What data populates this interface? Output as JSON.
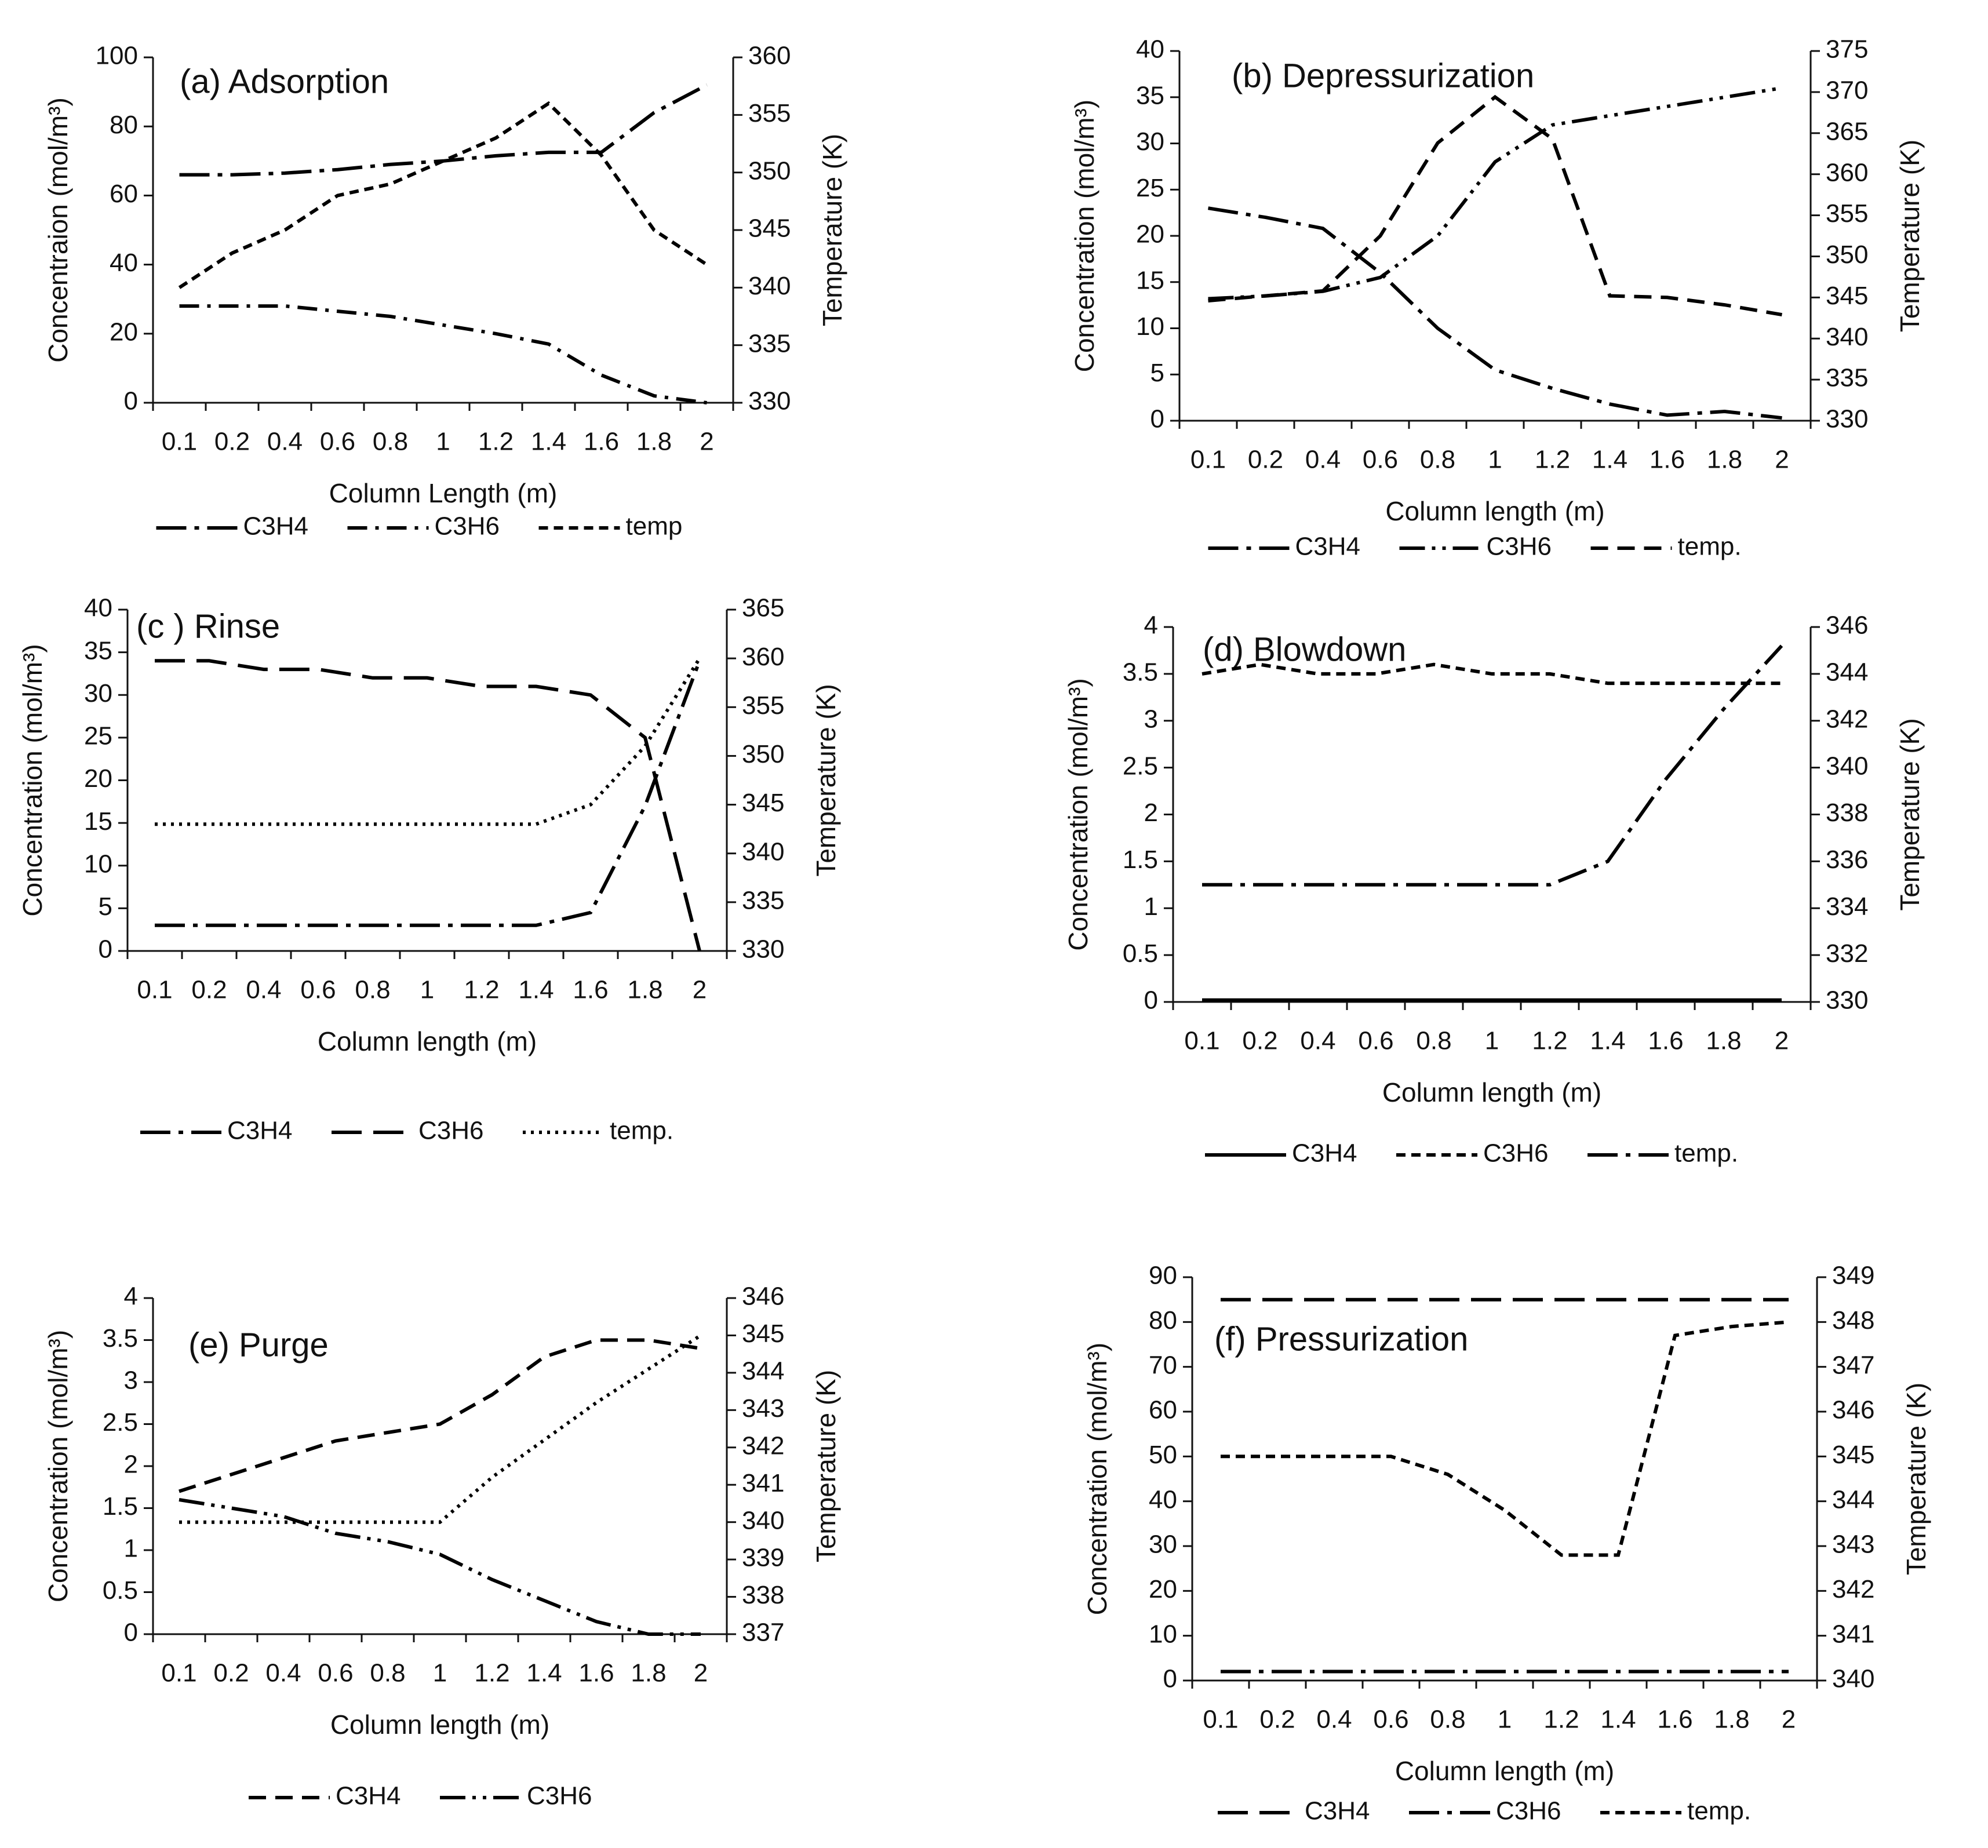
{
  "chart_data": [
    {
      "type": "line",
      "title": "(a) Adsorption",
      "x_label": "Column Length (m)",
      "y_label": "Concentraion (mol/m³)",
      "y2_label": "Temperature (K)",
      "categories": [
        "0.1",
        "0.2",
        "0.4",
        "0.6",
        "0.8",
        "1",
        "1.2",
        "1.4",
        "1.6",
        "1.8",
        "2"
      ],
      "ylim": [
        0,
        100
      ],
      "yticks": [
        0,
        20,
        40,
        60,
        80,
        100
      ],
      "y2lim": [
        330,
        360
      ],
      "y2ticks": [
        330,
        335,
        340,
        345,
        350,
        355,
        360
      ],
      "series": [
        {
          "name": "C3H4",
          "color": "#000000",
          "dash": "longdashdot",
          "values": [
            66,
            66,
            66.5,
            67.5,
            69,
            70,
            71.5,
            72.5,
            72.5,
            84,
            92
          ]
        },
        {
          "name": "C3H6",
          "color": "#000000",
          "dash": "dashdot",
          "values": [
            28,
            28,
            28,
            26.5,
            25,
            22.5,
            20,
            17,
            8,
            2,
            0
          ]
        },
        {
          "name": "temp",
          "color": "#000000",
          "dash": "shortdash",
          "axis": "y2",
          "values": [
            340,
            343,
            345,
            348,
            349,
            351,
            353,
            356,
            351.5,
            345,
            342
          ]
        }
      ]
    },
    {
      "type": "line",
      "title": "(b) Depressurization",
      "x_label": "Column length (m)",
      "y_label": "Concentration (mol/m³)",
      "y2_label": "Temperature (K)",
      "categories": [
        "0.1",
        "0.2",
        "0.4",
        "0.6",
        "0.8",
        "1",
        "1.2",
        "1.4",
        "1.6",
        "1.8",
        "2"
      ],
      "ylim": [
        0,
        40
      ],
      "yticks": [
        0,
        5,
        10,
        15,
        20,
        25,
        30,
        35,
        40
      ],
      "y2lim": [
        330,
        375
      ],
      "y2ticks": [
        330,
        335,
        340,
        345,
        350,
        355,
        360,
        365,
        370,
        375
      ],
      "series": [
        {
          "name": "C3H4",
          "color": "#000000",
          "dash": "longdashdot",
          "values": [
            23,
            22,
            20.8,
            16,
            10,
            5.5,
            3.5,
            1.8,
            0.6,
            1,
            0.3
          ]
        },
        {
          "name": "C3H6",
          "color": "#000000",
          "dash": "dashdotdot",
          "values": [
            13.2,
            13.5,
            14,
            15.5,
            20,
            28,
            32,
            33,
            34,
            35,
            36
          ]
        },
        {
          "name": "temp.",
          "color": "#000000",
          "dash": "dash",
          "axis": "y2",
          "values": [
            344.6,
            345.2,
            345.8,
            352.5,
            363.8,
            369.4,
            364.3,
            345.2,
            345,
            344.1,
            342.9
          ]
        }
      ]
    },
    {
      "type": "line",
      "title": "(c ) Rinse",
      "x_label": "Column length (m)",
      "y_label": "Concentration (mol/m³)",
      "y2_label": "Temperature (K)",
      "categories": [
        "0.1",
        "0.2",
        "0.4",
        "0.6",
        "0.8",
        "1",
        "1.2",
        "1.4",
        "1.6",
        "1.8",
        "2"
      ],
      "ylim": [
        0,
        40
      ],
      "yticks": [
        0,
        5,
        10,
        15,
        20,
        25,
        30,
        35,
        40
      ],
      "y2lim": [
        330,
        365
      ],
      "y2ticks": [
        330,
        335,
        340,
        345,
        350,
        355,
        360,
        365
      ],
      "series": [
        {
          "name": "C3H4",
          "color": "#000000",
          "dash": "longdashdot",
          "values": [
            3,
            3,
            3,
            3,
            3,
            3,
            3,
            3,
            4.5,
            17,
            34
          ]
        },
        {
          "name": "C3H6",
          "color": "#000000",
          "dash": "longdash",
          "values": [
            34,
            34,
            33,
            33,
            32,
            32,
            31,
            31,
            30,
            25,
            0
          ]
        },
        {
          "name": "temp.",
          "color": "#000000",
          "dash": "dot",
          "axis": "y2",
          "values": [
            343,
            343,
            343,
            343,
            343,
            343,
            343,
            343,
            345,
            351,
            360
          ]
        }
      ]
    },
    {
      "type": "line",
      "title": "(d) Blowdown",
      "x_label": "Column length (m)",
      "y_label": "Concentration (mol/m³)",
      "y2_label": "Temperature (K)",
      "categories": [
        "0.1",
        "0.2",
        "0.4",
        "0.6",
        "0.8",
        "1",
        "1.2",
        "1.4",
        "1.6",
        "1.8",
        "2"
      ],
      "ylim": [
        0,
        4
      ],
      "yticks": [
        0,
        0.5,
        1,
        1.5,
        2,
        2.5,
        3,
        3.5,
        4
      ],
      "y2lim": [
        330,
        346
      ],
      "y2ticks": [
        330,
        332,
        334,
        336,
        338,
        340,
        342,
        344,
        346
      ],
      "series": [
        {
          "name": "C3H4",
          "color": "#000000",
          "dash": "solid",
          "values": [
            0.02,
            0.02,
            0.02,
            0.02,
            0.02,
            0.02,
            0.02,
            0.02,
            0.02,
            0.02,
            0.02
          ]
        },
        {
          "name": "C3H6",
          "color": "#000000",
          "dash": "shortdash",
          "values": [
            3.5,
            3.6,
            3.5,
            3.5,
            3.6,
            3.5,
            3.5,
            3.4,
            3.4,
            3.4,
            3.4
          ]
        },
        {
          "name": "temp.",
          "color": "#000000",
          "dash": "longdashdot",
          "axis": "y2",
          "values": [
            335,
            335,
            335,
            335,
            335,
            335,
            335,
            336,
            339.5,
            342.5,
            345.2
          ]
        }
      ]
    },
    {
      "type": "line",
      "title": "(e) Purge",
      "x_label": "Column length (m)",
      "y_label": "Concentration (mol/m³)",
      "y2_label": "Temperature (K)",
      "categories": [
        "0.1",
        "0.2",
        "0.4",
        "0.6",
        "0.8",
        "1",
        "1.2",
        "1.4",
        "1.6",
        "1.8",
        "2"
      ],
      "ylim": [
        0,
        4
      ],
      "yticks": [
        0,
        0.5,
        1,
        1.5,
        2,
        2.5,
        3,
        3.5,
        4
      ],
      "y2lim": [
        337,
        346
      ],
      "y2ticks": [
        337,
        338,
        339,
        340,
        341,
        342,
        343,
        344,
        345,
        346
      ],
      "series": [
        {
          "name": "C3H4",
          "color": "#000000",
          "dash": "dash",
          "values": [
            1.7,
            1.9,
            2.1,
            2.3,
            2.4,
            2.5,
            2.85,
            3.3,
            3.5,
            3.5,
            3.4
          ]
        },
        {
          "name": "C3H6",
          "color": "#000000",
          "dash": "dashdotdot",
          "values": [
            1.6,
            1.5,
            1.4,
            1.2,
            1.1,
            0.95,
            0.65,
            0.4,
            0.15,
            0,
            0
          ]
        },
        {
          "color": "#000000",
          "dash": "dot",
          "axis": "y2",
          "values": [
            340,
            340,
            340,
            340,
            340,
            340,
            341.2,
            342.2,
            343.2,
            344.1,
            345
          ]
        }
      ]
    },
    {
      "type": "line",
      "title": "(f) Pressurization",
      "x_label": "Column length (m)",
      "y_label": "Concentration (mol/m³)",
      "y2_label": "Temperature (K)",
      "categories": [
        "0.1",
        "0.2",
        "0.4",
        "0.6",
        "0.8",
        "1",
        "1.2",
        "1.4",
        "1.6",
        "1.8",
        "2"
      ],
      "ylim": [
        0,
        90
      ],
      "yticks": [
        0,
        10,
        20,
        30,
        40,
        50,
        60,
        70,
        80,
        90
      ],
      "y2lim": [
        340,
        349
      ],
      "y2ticks": [
        340,
        341,
        342,
        343,
        344,
        345,
        346,
        347,
        348,
        349
      ],
      "series": [
        {
          "name": "C3H4",
          "color": "#000000",
          "dash": "longdash",
          "values": [
            85,
            85,
            85,
            85,
            85,
            85,
            85,
            85,
            85,
            85,
            85
          ]
        },
        {
          "name": "C3H6",
          "color": "#000000",
          "dash": "longdashdot",
          "values": [
            2,
            2,
            2,
            2,
            2,
            2,
            2,
            2,
            2,
            2,
            2
          ]
        },
        {
          "name": "temp.",
          "color": "#000000",
          "dash": "shortdash",
          "axis": "y2",
          "values": [
            345,
            345,
            345,
            345,
            344.6,
            343.8,
            342.8,
            342.8,
            347.7,
            347.9,
            348
          ]
        }
      ]
    }
  ]
}
